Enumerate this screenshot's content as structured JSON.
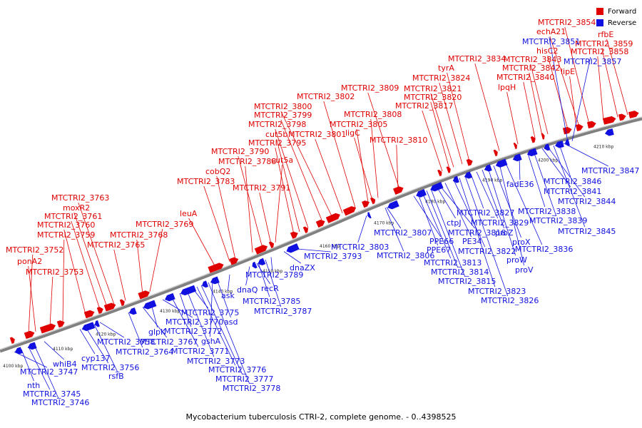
{
  "legend": {
    "forward": "Forward",
    "reverse": "Reverse",
    "forward_color": "#e00000",
    "reverse_color": "#1010e0"
  },
  "caption": "Mycobacterium tuberculosis CTRI-2, complete genome. - 0..4398525",
  "ticks": [
    "4100 kbp",
    "4110 kbp",
    "4120 kbp",
    "4130 kbp",
    "4140 kbp",
    "4150 kbp",
    "4160 kbp",
    "4170 kbp",
    "4180 kbp",
    "4190 kbp",
    "4200 kbp",
    "4210 kbp"
  ],
  "forward_labels": [
    "MTCTRI2_3752",
    "ponA2",
    "MTCTRI2_3753",
    "MTCTRI2_3759",
    "MTCTRI2_3760",
    "MTCTRI2_3761",
    "moxR2",
    "MTCTRI2_3763",
    "MTCTRI2_3765",
    "MTCTRI2_3768",
    "MTCTRI2_3769",
    "leuA",
    "MTCTRI2_3783",
    "cobQ2",
    "MTCTRI2_3788",
    "MTCTRI2_3790",
    "MTCTRI2_3791",
    "cut5a",
    "MTCTRI2_3795",
    "cut5b",
    "MTCTRI2_3798",
    "MTCTRI2_3799",
    "MTCTRI2_3800",
    "MTCTRI2_3801",
    "MTCTRI2_3802",
    "MTCTRI2_3805",
    "ligC",
    "MTCTRI2_3808",
    "MTCTRI2_3809",
    "MTCTRI2_3810",
    "MTCTRI2_3817",
    "MTCTRI2_3820",
    "MTCTRI2_3821",
    "MTCTRI2_3824",
    "tyrA",
    "MTCTRI2_3834",
    "lpqH",
    "MTCTRI2_3840",
    "MTCTRI2_3842",
    "MTCTRI2_3843",
    "hisC2",
    "lipE",
    "echA21",
    "MTCTRI2_3854",
    "MTCTRI2_3858",
    "MTCTRI2_3859",
    "rfbE"
  ],
  "reverse_labels": [
    "MTCTRI2_3747",
    "nth",
    "MTCTRI2_3745",
    "MTCTRI2_3746",
    "whiB4",
    "cyp137",
    "MTCTRI2_3756",
    "rsfB",
    "MTCTRI2_3758",
    "MTCTRI2_3764",
    "MTCTRI2_3767",
    "glpK",
    "MTCTRI2_3770",
    "MTCTRI2_3771",
    "MTCTRI2_3772",
    "MTCTRI2_3773",
    "MTCTRI2_3775",
    "MTCTRI2_3776",
    "MTCTRI2_3777",
    "MTCTRI2_3778",
    "gshA",
    "asd",
    "ask",
    "dnaQ",
    "recR",
    "MTCTRI2_3785",
    "MTCTRI2_3787",
    "MTCTRI2_3789",
    "dnaZX",
    "MTCTRI2_3793",
    "MTCTRI2_3803",
    "MTCTRI2_3806",
    "MTCTRI2_3807",
    "PPE66",
    "PPE67",
    "MTCTRI2_3813",
    "MTCTRI2_3814",
    "MTCTRI2_3815",
    "ctpJ",
    "MTCTRI2_3818",
    "PE34",
    "MTCTRI2_3822",
    "MTCTRI2_3823",
    "MTCTRI2_3826",
    "MTCTRI2_3827",
    "MTCTRI2_3829",
    "proZ",
    "proW",
    "proX",
    "proV",
    "MTCTRI2_3836",
    "fadE36",
    "MTCTRI2_3838",
    "MTCTRI2_3839",
    "MTCTRI2_3841",
    "MTCTRI2_3844",
    "MTCTRI2_3845",
    "MTCTRI2_3846",
    "MTCTRI2_3847",
    "MTCTRI2_3851",
    "MTCTRI2_3857"
  ]
}
